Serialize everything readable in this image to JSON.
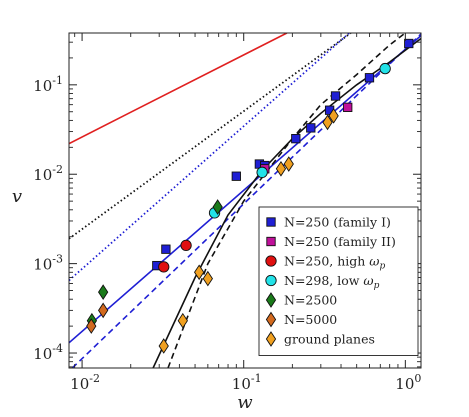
{
  "chart_data": {
    "type": "scatter",
    "xlabel": "w",
    "ylabel": "v",
    "xscale": "log",
    "yscale": "log",
    "xlim": [
      0.0083,
      1.25
    ],
    "ylim": [
      6.8e-05,
      0.38
    ],
    "xticks": [
      {
        "value": 0.01,
        "base": "10",
        "exp": "-2"
      },
      {
        "value": 0.1,
        "base": "10",
        "exp": "-1"
      },
      {
        "value": 1,
        "base": "10",
        "exp": "0"
      }
    ],
    "yticks": [
      {
        "value": 0.0001,
        "base": "10",
        "exp": "-4"
      },
      {
        "value": 0.001,
        "base": "10",
        "exp": "-3"
      },
      {
        "value": 0.01,
        "base": "10",
        "exp": "-2"
      },
      {
        "value": 0.1,
        "base": "10",
        "exp": "-1"
      }
    ],
    "grid": false,
    "legend_position": "bottom-right",
    "series": [
      {
        "name": "N=250 (family I)",
        "marker": "square",
        "color": "#1f1fd4",
        "x": [
          0.029,
          0.033,
          0.09,
          0.125,
          0.135,
          0.21,
          0.26,
          0.34,
          0.37,
          0.6,
          1.05
        ],
        "y": [
          0.00095,
          0.00145,
          0.0095,
          0.013,
          0.0125,
          0.025,
          0.033,
          0.052,
          0.075,
          0.12,
          0.29
        ]
      },
      {
        "name": "N=250 (family II)",
        "marker": "square",
        "color": "#c0109a",
        "x": [
          0.135,
          0.44
        ],
        "y": [
          0.0115,
          0.056
        ]
      },
      {
        "name": "N=250, high ω_p",
        "name_parts": [
          "N=250, high ",
          "ω",
          "p"
        ],
        "marker": "circle",
        "color": "#e01010",
        "x": [
          0.032,
          0.044
        ],
        "y": [
          0.00092,
          0.0016
        ]
      },
      {
        "name": "N=298, low ω_p",
        "name_parts": [
          "N=298, low ",
          "ω",
          "p"
        ],
        "marker": "circle",
        "color": "#22e2e8",
        "x": [
          0.066,
          0.13,
          0.75
        ],
        "y": [
          0.0037,
          0.0105,
          0.152
        ]
      },
      {
        "name": "N=2500",
        "marker": "diamond",
        "color": "#1a7a1a",
        "x": [
          0.0115,
          0.0135,
          0.069
        ],
        "y": [
          0.00023,
          0.00048,
          0.0043
        ]
      },
      {
        "name": "N=5000",
        "marker": "diamond",
        "color": "#d2691e",
        "x": [
          0.0114,
          0.0135
        ],
        "y": [
          0.0002,
          0.0003
        ]
      },
      {
        "name": "ground planes",
        "marker": "diamond",
        "color": "#f0a020",
        "x": [
          0.032,
          0.042,
          0.053,
          0.06,
          0.17,
          0.19,
          0.33,
          0.36
        ],
        "y": [
          0.00012,
          0.00023,
          0.0008,
          0.00068,
          0.0115,
          0.013,
          0.038,
          0.045
        ]
      }
    ],
    "lines": [
      {
        "color": "#e02020",
        "style": "solid",
        "x": [
          0.0083,
          0.185
        ],
        "y": [
          0.022,
          0.38
        ]
      },
      {
        "color": "#111111",
        "style": "dotted",
        "x": [
          0.0083,
          0.46
        ],
        "y": [
          0.0019,
          0.38
        ]
      },
      {
        "color": "#1f1fd4",
        "style": "dotted",
        "x": [
          0.0083,
          0.45
        ],
        "y": [
          0.00065,
          0.38
        ]
      },
      {
        "color": "#1f1fd4",
        "style": "solid",
        "x": [
          0.0083,
          1.25
        ],
        "y": [
          0.00013,
          0.355
        ]
      },
      {
        "color": "#1f1fd4",
        "style": "dashed",
        "x": [
          0.0087,
          1.25
        ],
        "y": [
          6.8e-05,
          0.37
        ]
      },
      {
        "color": "#111111",
        "style": "solid",
        "x": [
          0.0275,
          0.05,
          0.08,
          0.13,
          0.2,
          0.3,
          0.5,
          0.8,
          1.25
        ],
        "y": [
          6.8e-05,
          0.0007,
          0.0035,
          0.011,
          0.025,
          0.048,
          0.1,
          0.18,
          0.33
        ]
      },
      {
        "color": "#111111",
        "style": "dashed",
        "x": [
          0.034,
          0.06,
          0.1,
          0.2,
          0.3,
          0.5,
          0.8,
          1.0
        ],
        "y": [
          6.8e-05,
          0.001,
          0.005,
          0.025,
          0.06,
          0.13,
          0.28,
          0.38
        ]
      }
    ]
  }
}
